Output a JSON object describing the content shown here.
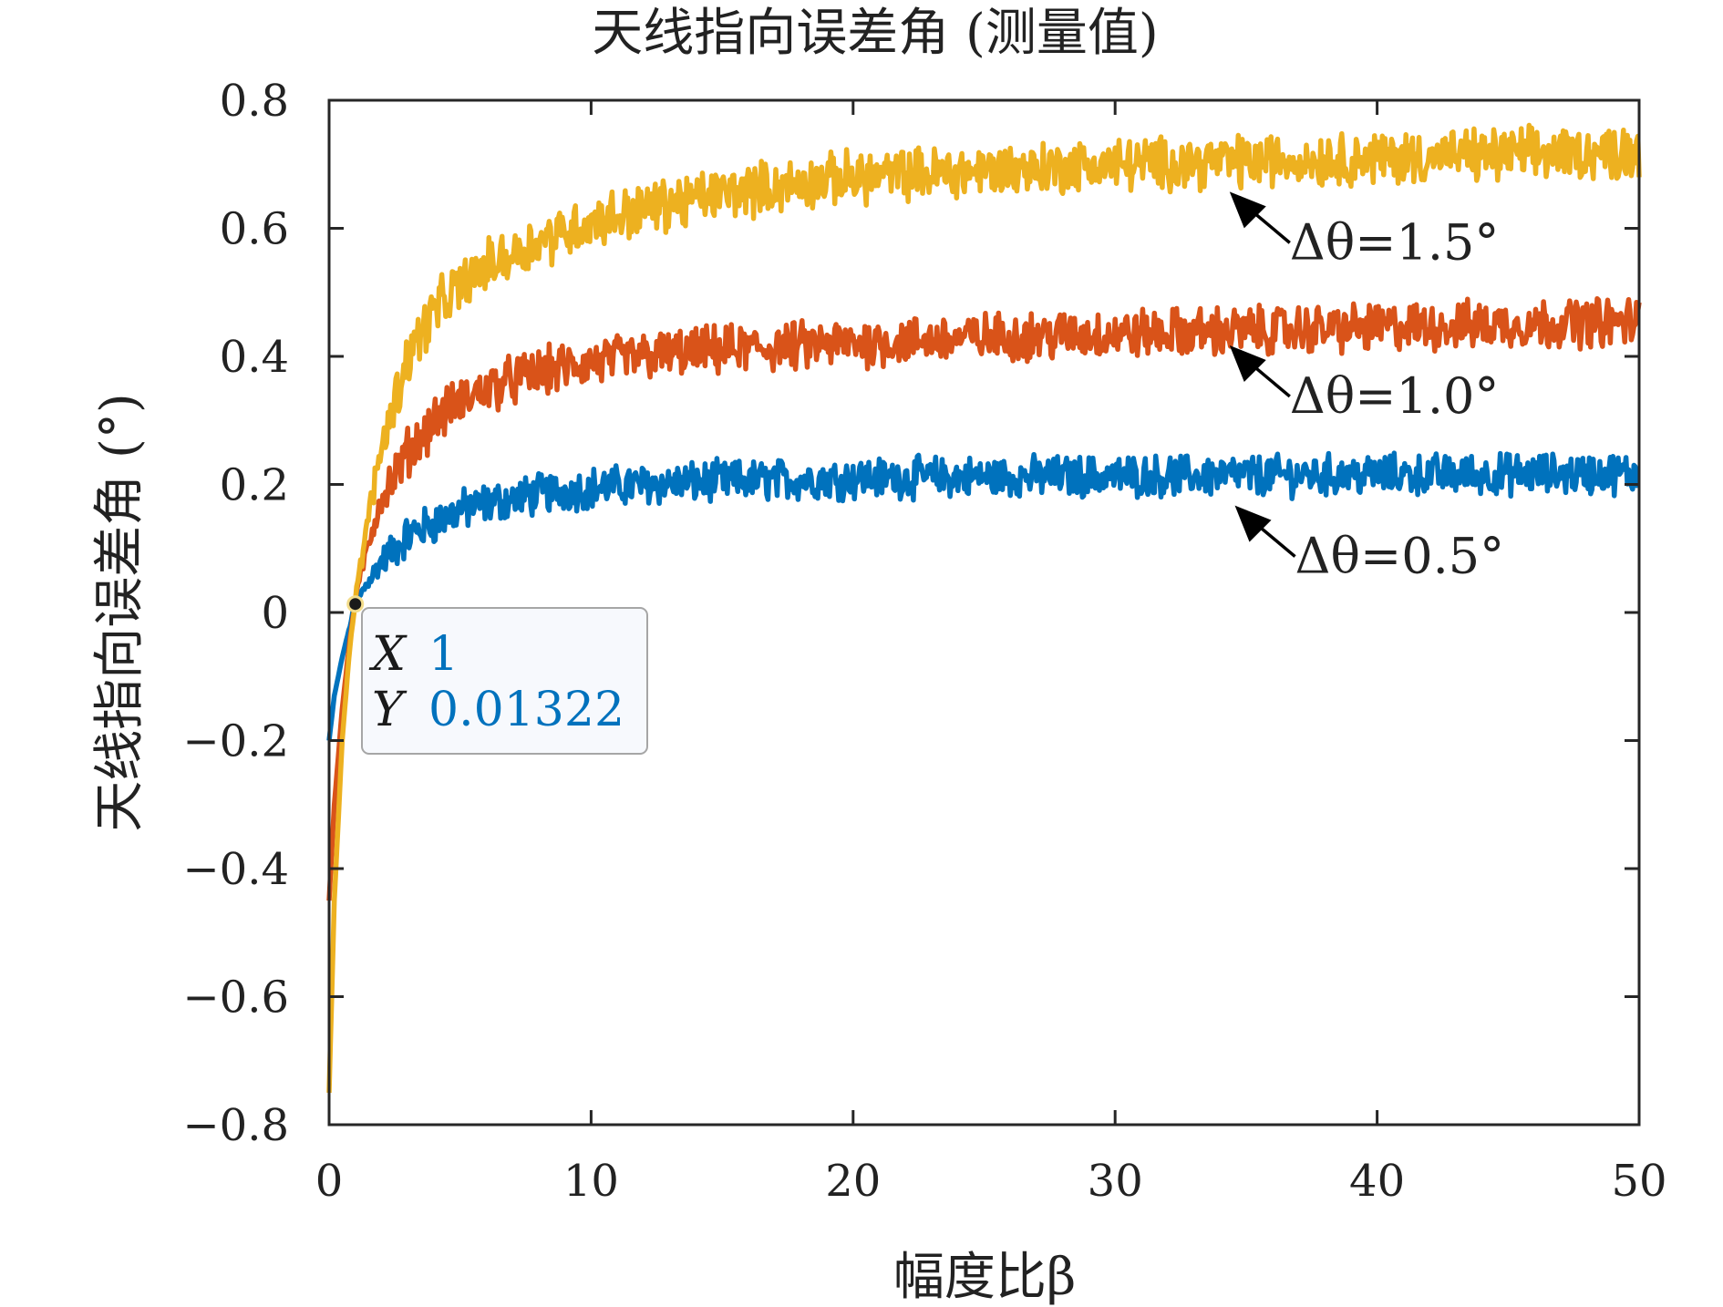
{
  "chart_data": {
    "type": "line",
    "title": "天线指向误差角 (测量值)",
    "xlabel": "幅度比β",
    "ylabel": "天线指向误差角 (°)",
    "xlim": [
      0,
      50
    ],
    "ylim": [
      -0.8,
      0.8
    ],
    "xticks": [
      0,
      10,
      20,
      30,
      40,
      50
    ],
    "xtick_labels": [
      "0",
      "10",
      "20",
      "30",
      "40",
      "50"
    ],
    "yticks": [
      -0.8,
      -0.6,
      -0.4,
      -0.2,
      0,
      0.2,
      0.4,
      0.6,
      0.8
    ],
    "ytick_labels": [
      "−0.8",
      "−0.6",
      "−0.4",
      "−0.2",
      "0",
      "0.2",
      "0.4",
      "0.6",
      "0.8"
    ],
    "grid": false,
    "legend": "none",
    "series": [
      {
        "color": "#0072bd",
        "x": [
          0,
          0.2,
          0.5,
          0.8,
          1,
          1.5,
          2,
          3,
          4,
          5,
          6,
          8,
          10,
          12,
          15,
          20,
          25,
          30,
          35,
          40,
          45,
          50
        ],
        "y": [
          -0.2,
          -0.13,
          -0.07,
          -0.02,
          0.01322,
          0.05,
          0.08,
          0.12,
          0.14,
          0.16,
          0.17,
          0.185,
          0.195,
          0.2,
          0.205,
          0.21,
          0.212,
          0.213,
          0.214,
          0.215,
          0.216,
          0.217
        ]
      },
      {
        "color": "#d95319",
        "x": [
          0,
          0.2,
          0.5,
          0.8,
          1,
          1.5,
          2,
          3,
          4,
          5,
          6,
          8,
          10,
          12,
          15,
          20,
          25,
          30,
          35,
          40,
          45,
          50
        ],
        "y": [
          -0.45,
          -0.3,
          -0.15,
          -0.04,
          0.02,
          0.11,
          0.18,
          0.25,
          0.3,
          0.33,
          0.35,
          0.375,
          0.39,
          0.4,
          0.41,
          0.42,
          0.43,
          0.435,
          0.44,
          0.445,
          0.45,
          0.455
        ]
      },
      {
        "color": "#edb120",
        "x": [
          0,
          0.2,
          0.5,
          0.8,
          1,
          1.5,
          2,
          3,
          4,
          5,
          6,
          8,
          10,
          12,
          15,
          20,
          25,
          30,
          35,
          40,
          45,
          50
        ],
        "y": [
          -0.75,
          -0.45,
          -0.2,
          -0.05,
          0.02,
          0.15,
          0.26,
          0.4,
          0.47,
          0.51,
          0.54,
          0.58,
          0.61,
          0.63,
          0.655,
          0.68,
          0.69,
          0.7,
          0.705,
          0.71,
          0.715,
          0.72
        ]
      }
    ],
    "annotations": [
      {
        "label": "Δθ=1.5°",
        "x": 34.3,
        "y": 0.66
      },
      {
        "label": "Δθ=1.0°",
        "x": 34.3,
        "y": 0.42
      },
      {
        "label": "Δθ=0.5°",
        "x": 34.5,
        "y": 0.17
      }
    ],
    "datatip": {
      "x_key": "X",
      "x_value": "1",
      "y_key": "Y",
      "y_value": "0.01322",
      "x": 1,
      "y": 0.01322
    }
  }
}
